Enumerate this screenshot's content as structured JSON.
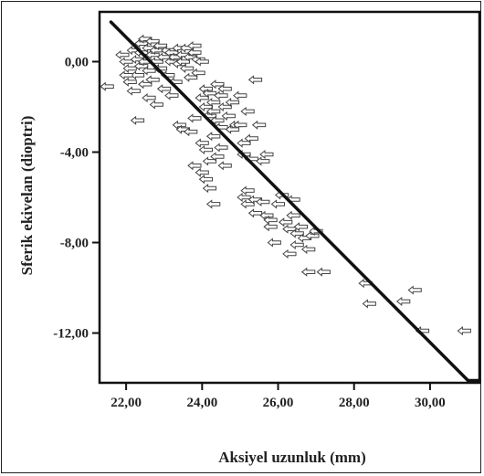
{
  "chart_data": {
    "type": "scatter",
    "xlabel": "Aksiyel uzunluk (mm)",
    "ylabel": "Sferik ekivelan (dioptri)",
    "xlim": [
      21.3,
      31.3
    ],
    "ylim": [
      -14.2,
      2.2
    ],
    "x_ticks": [
      22,
      24,
      26,
      28,
      30
    ],
    "x_tick_labels": [
      "22,00",
      "24,00",
      "26,00",
      "28,00",
      "30,00"
    ],
    "y_ticks": [
      0,
      -4,
      -8,
      -12
    ],
    "y_tick_labels": [
      "0,00",
      "-4,00",
      "-8,00",
      "-12,00"
    ],
    "grid": false,
    "marker": "open-arrow-left",
    "fit_line": {
      "x": [
        21.6,
        31.0,
        31.3
      ],
      "y": [
        1.75,
        -14.1,
        -14.1
      ]
    },
    "points": [
      [
        21.5,
        -1.1
      ],
      [
        21.9,
        0.3
      ],
      [
        22.0,
        0.0
      ],
      [
        22.1,
        -0.3
      ],
      [
        22.1,
        -0.9
      ],
      [
        22.2,
        0.5
      ],
      [
        22.2,
        -1.3
      ],
      [
        22.3,
        0.1
      ],
      [
        22.3,
        -0.6
      ],
      [
        22.4,
        0.8
      ],
      [
        22.4,
        0.4
      ],
      [
        22.4,
        -0.2
      ],
      [
        22.5,
        -1.0
      ],
      [
        22.5,
        1.0
      ],
      [
        22.5,
        0.0
      ],
      [
        22.6,
        0.6
      ],
      [
        22.6,
        -0.4
      ],
      [
        22.6,
        -1.6
      ],
      [
        22.7,
        0.9
      ],
      [
        22.7,
        0.3
      ],
      [
        22.7,
        -0.8
      ],
      [
        22.8,
        0.5
      ],
      [
        22.8,
        0.0
      ],
      [
        22.8,
        -1.9
      ],
      [
        22.9,
        0.7
      ],
      [
        22.9,
        -0.3
      ],
      [
        22.3,
        -2.6
      ],
      [
        23.0,
        0.2
      ],
      [
        23.0,
        -1.2
      ],
      [
        23.1,
        0.5
      ],
      [
        23.1,
        -0.6
      ],
      [
        23.2,
        0.0
      ],
      [
        23.2,
        0.4
      ],
      [
        23.3,
        0.2
      ],
      [
        23.3,
        -0.9
      ],
      [
        23.4,
        0.6
      ],
      [
        23.4,
        -0.1
      ],
      [
        23.5,
        0.3
      ],
      [
        23.5,
        0.0
      ],
      [
        23.6,
        0.6
      ],
      [
        23.6,
        -0.3
      ],
      [
        23.7,
        0.2
      ],
      [
        23.7,
        -0.7
      ],
      [
        23.8,
        0.7
      ],
      [
        23.8,
        0.4
      ],
      [
        23.9,
        0.1
      ],
      [
        23.9,
        -0.5
      ],
      [
        24.0,
        0.0
      ],
      [
        23.4,
        -2.8
      ],
      [
        23.5,
        -3.0
      ],
      [
        23.7,
        -3.1
      ],
      [
        23.8,
        -2.5
      ],
      [
        24.0,
        -1.6
      ],
      [
        24.1,
        -1.2
      ],
      [
        24.1,
        -2.0
      ],
      [
        24.2,
        -1.4
      ],
      [
        24.2,
        -2.4
      ],
      [
        24.3,
        -1.8
      ],
      [
        24.3,
        -2.2
      ],
      [
        24.4,
        -1.0
      ],
      [
        24.4,
        -2.6
      ],
      [
        24.5,
        -1.5
      ],
      [
        24.5,
        -2.9
      ],
      [
        24.6,
        -2.0
      ],
      [
        24.6,
        -1.2
      ],
      [
        24.7,
        -2.4
      ],
      [
        24.8,
        -1.8
      ],
      [
        24.9,
        -2.8
      ],
      [
        25.0,
        -1.5
      ],
      [
        25.0,
        -2.8
      ],
      [
        25.1,
        -3.6
      ],
      [
        25.2,
        -2.2
      ],
      [
        25.4,
        -0.8
      ],
      [
        25.5,
        -2.8
      ],
      [
        24.0,
        -3.6
      ],
      [
        24.1,
        -3.9
      ],
      [
        24.2,
        -4.4
      ],
      [
        24.0,
        -4.9
      ],
      [
        23.8,
        -4.6
      ],
      [
        24.1,
        -5.2
      ],
      [
        24.2,
        -5.6
      ],
      [
        24.4,
        -4.2
      ],
      [
        24.5,
        -3.8
      ],
      [
        24.6,
        -4.6
      ],
      [
        24.3,
        -3.3
      ],
      [
        25.1,
        -4.1
      ],
      [
        25.3,
        -4.3
      ],
      [
        25.3,
        -3.4
      ],
      [
        25.6,
        -4.4
      ],
      [
        25.7,
        -4.1
      ],
      [
        25.1,
        -6.0
      ],
      [
        25.2,
        -6.3
      ],
      [
        25.4,
        -6.1
      ],
      [
        25.2,
        -5.7
      ],
      [
        25.6,
        -6.2
      ],
      [
        25.7,
        -6.8
      ],
      [
        25.4,
        -6.7
      ],
      [
        25.8,
        -7.0
      ],
      [
        26.0,
        -6.3
      ],
      [
        26.1,
        -5.9
      ],
      [
        26.2,
        -7.1
      ],
      [
        26.3,
        -7.4
      ],
      [
        26.4,
        -6.8
      ],
      [
        26.5,
        -7.6
      ],
      [
        26.5,
        -8.1
      ],
      [
        26.6,
        -7.3
      ],
      [
        26.7,
        -7.8
      ],
      [
        26.8,
        -8.3
      ],
      [
        26.9,
        -7.7
      ],
      [
        27.0,
        -7.5
      ],
      [
        26.3,
        -8.5
      ],
      [
        25.9,
        -8.0
      ],
      [
        25.8,
        -7.3
      ],
      [
        26.8,
        -9.3
      ],
      [
        27.2,
        -9.3
      ],
      [
        26.4,
        -6.1
      ],
      [
        24.3,
        -6.3
      ],
      [
        28.3,
        -9.8
      ],
      [
        28.4,
        -10.7
      ],
      [
        29.3,
        -10.6
      ],
      [
        29.6,
        -10.1
      ],
      [
        29.8,
        -11.9
      ],
      [
        30.9,
        -11.9
      ],
      [
        22.0,
        -0.6
      ],
      [
        23.2,
        -1.5
      ],
      [
        24.8,
        -3.0
      ]
    ]
  }
}
